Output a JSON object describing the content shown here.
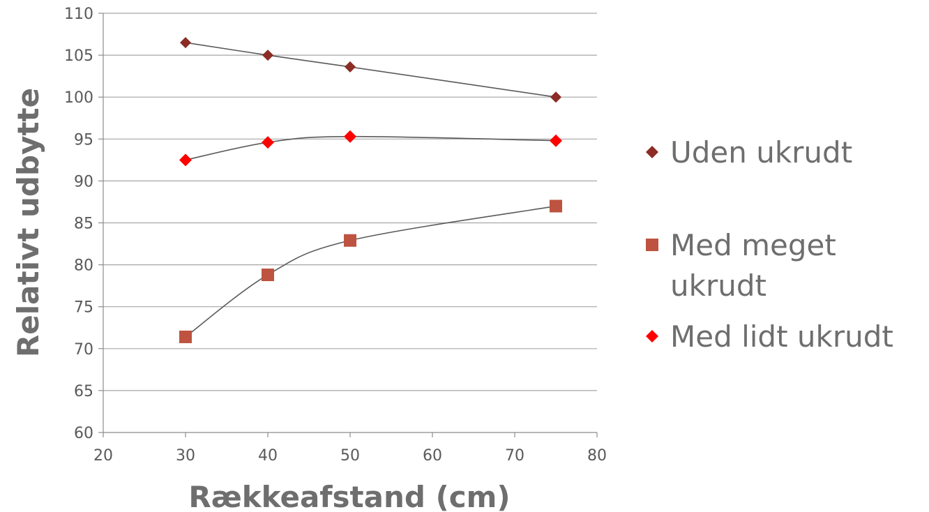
{
  "chart_data": {
    "type": "scatter",
    "xlabel": "Rækkeafstand (cm)",
    "ylabel": "Relativt udbytte",
    "xlim": [
      20,
      80
    ],
    "ylim": [
      60,
      110
    ],
    "x_ticks": [
      20,
      30,
      40,
      50,
      60,
      70,
      80
    ],
    "y_ticks": [
      60,
      65,
      70,
      75,
      80,
      85,
      90,
      95,
      100,
      105,
      110
    ],
    "grid": "horizontal",
    "legend_position": "right",
    "trendlines": true,
    "series": [
      {
        "name": "Uden ukrudt",
        "marker": "diamond",
        "color": "#8b2c25",
        "x": [
          30,
          40,
          50,
          75
        ],
        "y": [
          106.5,
          105,
          103.6,
          100
        ]
      },
      {
        "name": "Med meget ukrudt",
        "name_lines": [
          "Med meget",
          "ukrudt"
        ],
        "marker": "square",
        "color": "#bd5340",
        "x": [
          30,
          40,
          50,
          75
        ],
        "y": [
          71.4,
          78.8,
          82.9,
          87
        ]
      },
      {
        "name": "Med lidt ukrudt",
        "marker": "diamond",
        "color": "#ff0000",
        "x": [
          30,
          40,
          50,
          75
        ],
        "y": [
          92.5,
          94.6,
          95.3,
          94.8
        ]
      }
    ]
  }
}
